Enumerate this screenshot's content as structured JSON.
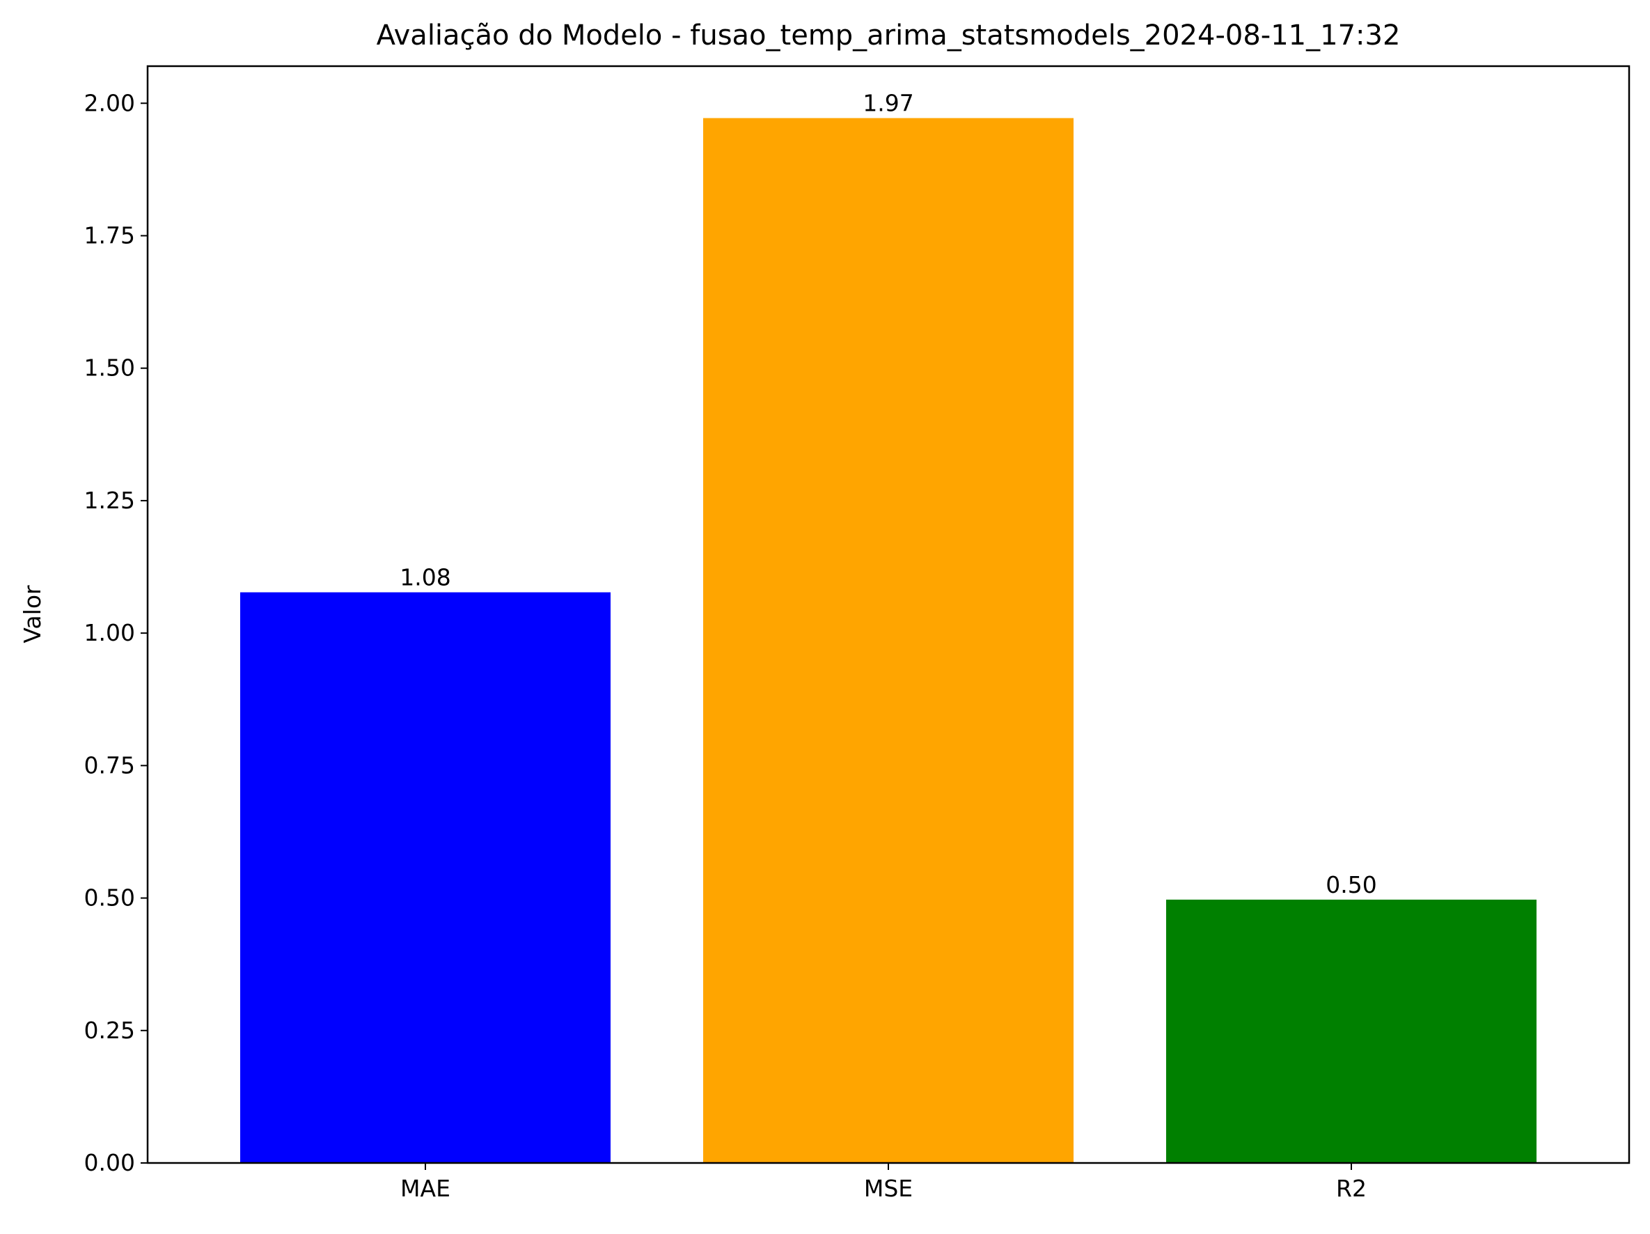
{
  "chart_data": {
    "type": "bar",
    "title": "Avaliação do Modelo - fusao_temp_arima_statsmodels_2024-08-11_17:32",
    "xlabel": "",
    "ylabel": "Valor",
    "categories": [
      "MAE",
      "MSE",
      "R2"
    ],
    "values": [
      1.077,
      1.972,
      0.497
    ],
    "value_labels": [
      "1.08",
      "1.97",
      "0.50"
    ],
    "colors": [
      "#0000ff",
      "#ffa500",
      "#008000"
    ],
    "ylim": [
      0,
      2.07
    ],
    "yticks": [
      0.0,
      0.25,
      0.5,
      0.75,
      1.0,
      1.25,
      1.5,
      1.75,
      2.0
    ],
    "ytick_labels": [
      "0.00",
      "0.25",
      "0.50",
      "0.75",
      "1.00",
      "1.25",
      "1.50",
      "1.75",
      "2.00"
    ],
    "grid": false,
    "legend": "none"
  }
}
